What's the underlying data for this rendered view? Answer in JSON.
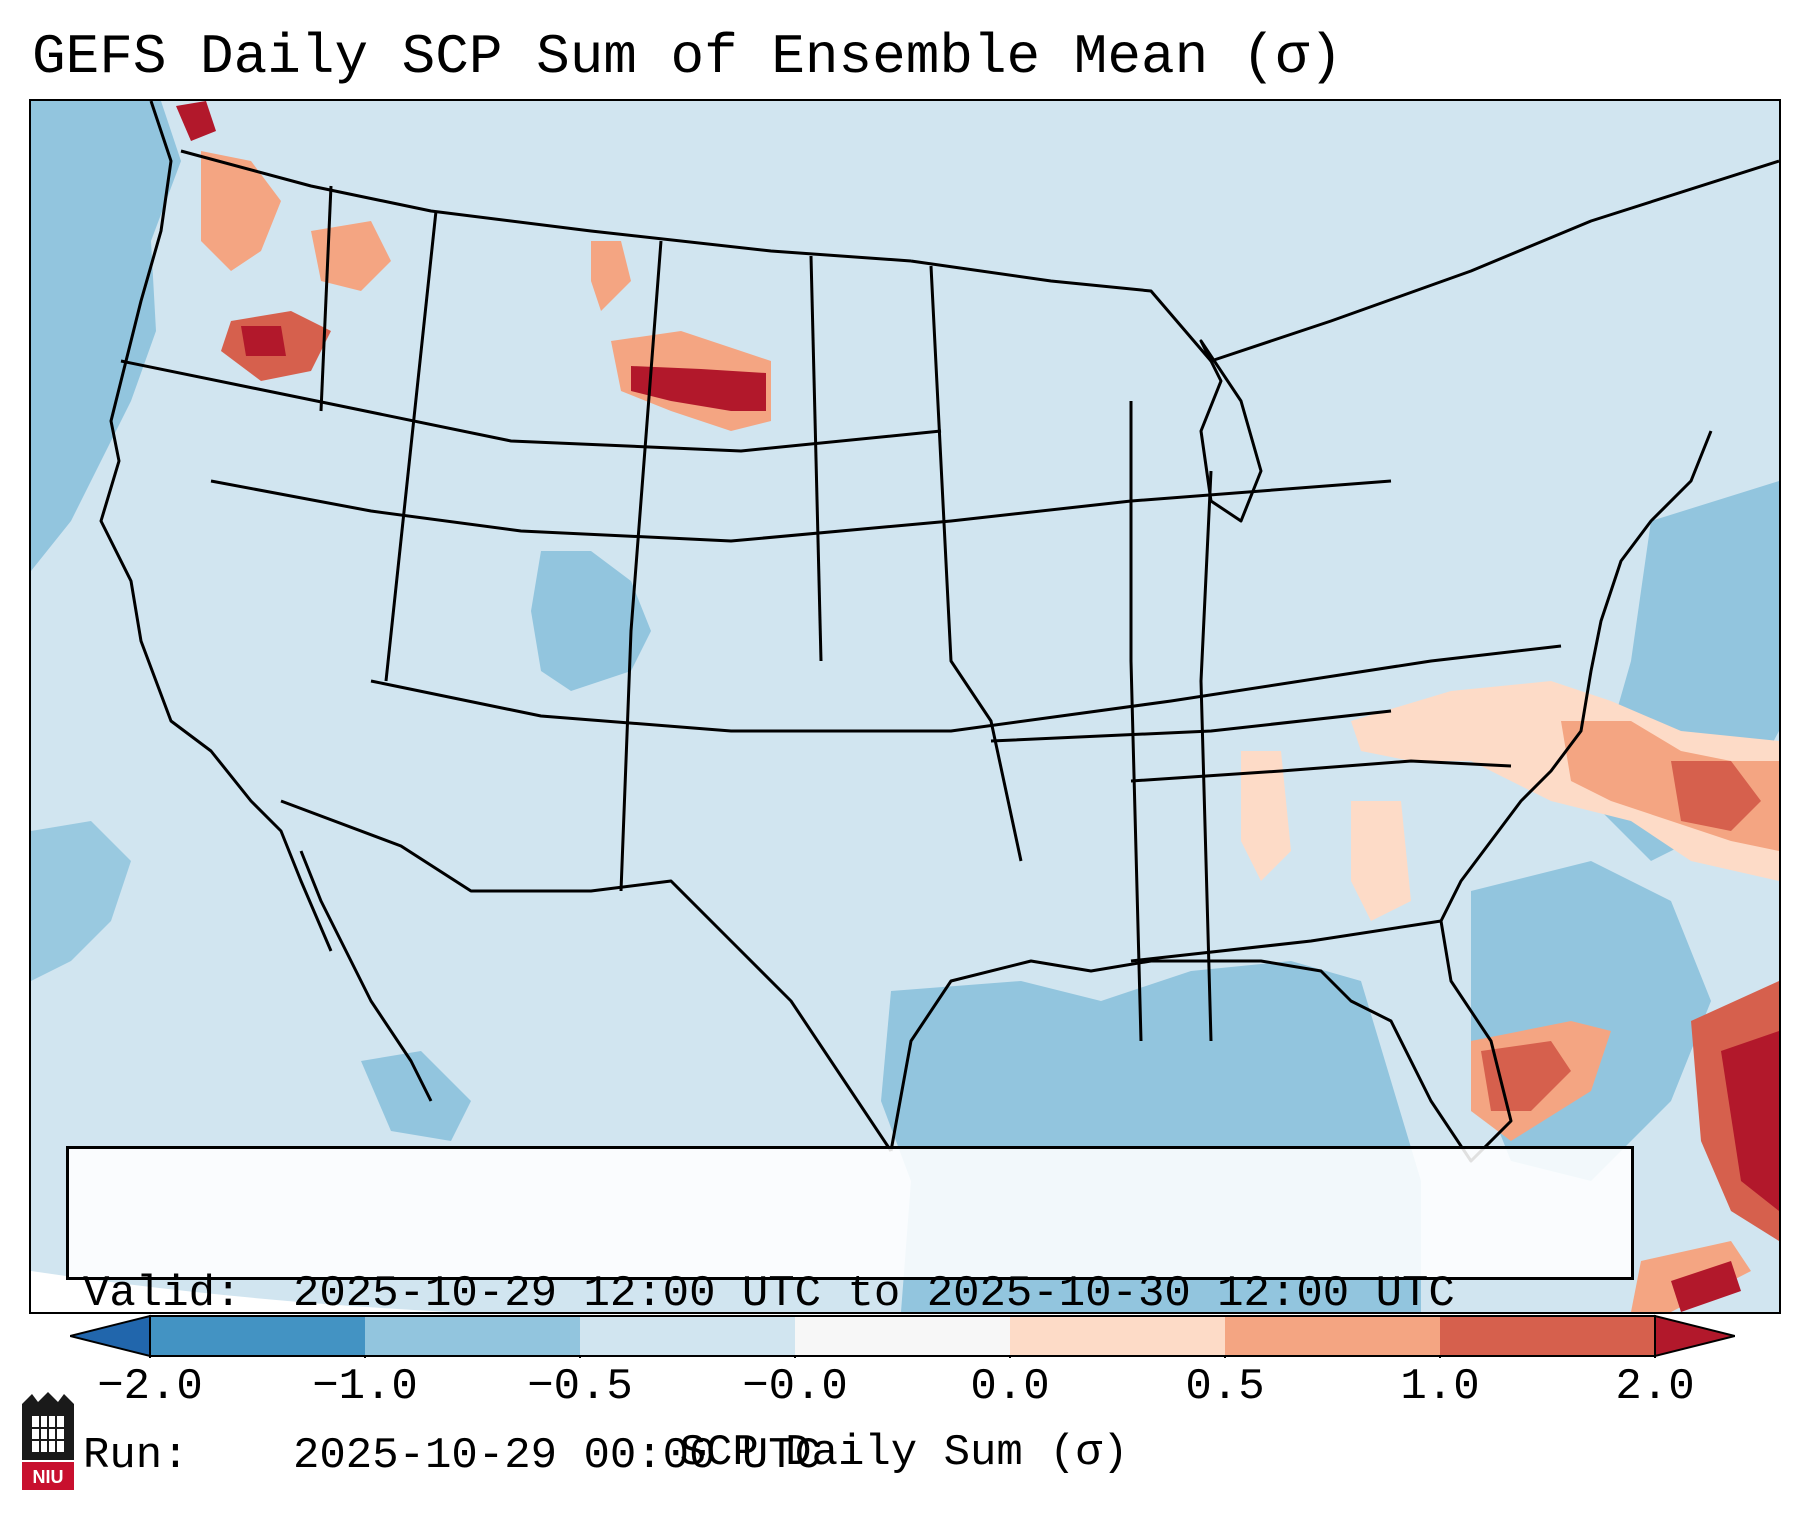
{
  "title": "GEFS Daily SCP Sum of Ensemble Mean (σ)",
  "info": {
    "valid_label": "Valid:",
    "valid_value": "2025-10-29 12:00 UTC to 2025-10-30 12:00 UTC",
    "run_label": "Run:",
    "run_value": "2025-10-29 00:00 UTC"
  },
  "colorbar": {
    "label": "SCP Daily Sum (σ)",
    "ticks": [
      "−2.0",
      "−1.0",
      "−0.5",
      "−0.0",
      "0.0",
      "0.5",
      "1.0",
      "2.0"
    ],
    "bins": [
      {
        "color": "#4393c3"
      },
      {
        "color": "#92c5de"
      },
      {
        "color": "#d1e5f0"
      },
      {
        "color": "#f7f7f7"
      },
      {
        "color": "#fddbc7"
      },
      {
        "color": "#f4a582"
      },
      {
        "color": "#d6604d"
      }
    ],
    "extend_min_color": "#2166ac",
    "extend_max_color": "#b2182b"
  },
  "map": {
    "background_color": "#d1e5f0",
    "ocean_anomaly_color": "#92c5de",
    "colors": {
      "light_pos": "#fddbc7",
      "med_pos": "#f4a582",
      "high_pos": "#d6604d",
      "max_pos": "#b2182b"
    }
  },
  "logo": {
    "text": "NIU",
    "icon": "niu-university-logo"
  }
}
